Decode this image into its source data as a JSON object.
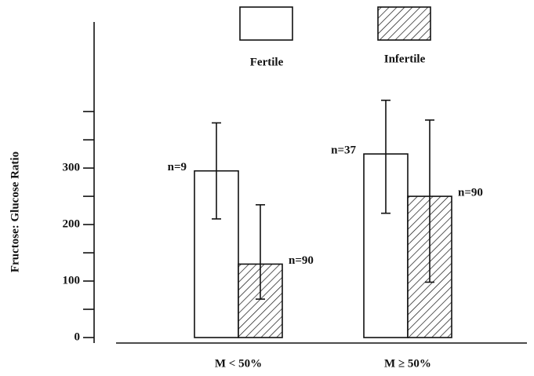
{
  "chart_data": {
    "type": "bar",
    "y_label": "Fructose: Glucose Ratio",
    "categories": [
      "M < 50%",
      "M ≥ 50%"
    ],
    "series": [
      {
        "name": "Fertile",
        "color": "#ffffff",
        "hatch": false,
        "values": [
          295,
          325
        ],
        "err_low": [
          210,
          220
        ],
        "err_high": [
          380,
          420
        ],
        "value_labels": [
          "n=9",
          "n=37"
        ]
      },
      {
        "name": "Infertile",
        "color": "#ffffff",
        "hatch": true,
        "values": [
          130,
          250
        ],
        "err_low": [
          68,
          98
        ],
        "err_high": [
          235,
          385
        ],
        "value_labels": [
          "n=90",
          "n=90"
        ]
      }
    ],
    "ylim": [
      0,
      560
    ],
    "yticks": [
      0,
      100,
      200,
      300
    ],
    "minor_yticks": [
      50,
      150,
      250,
      350,
      400
    ]
  }
}
